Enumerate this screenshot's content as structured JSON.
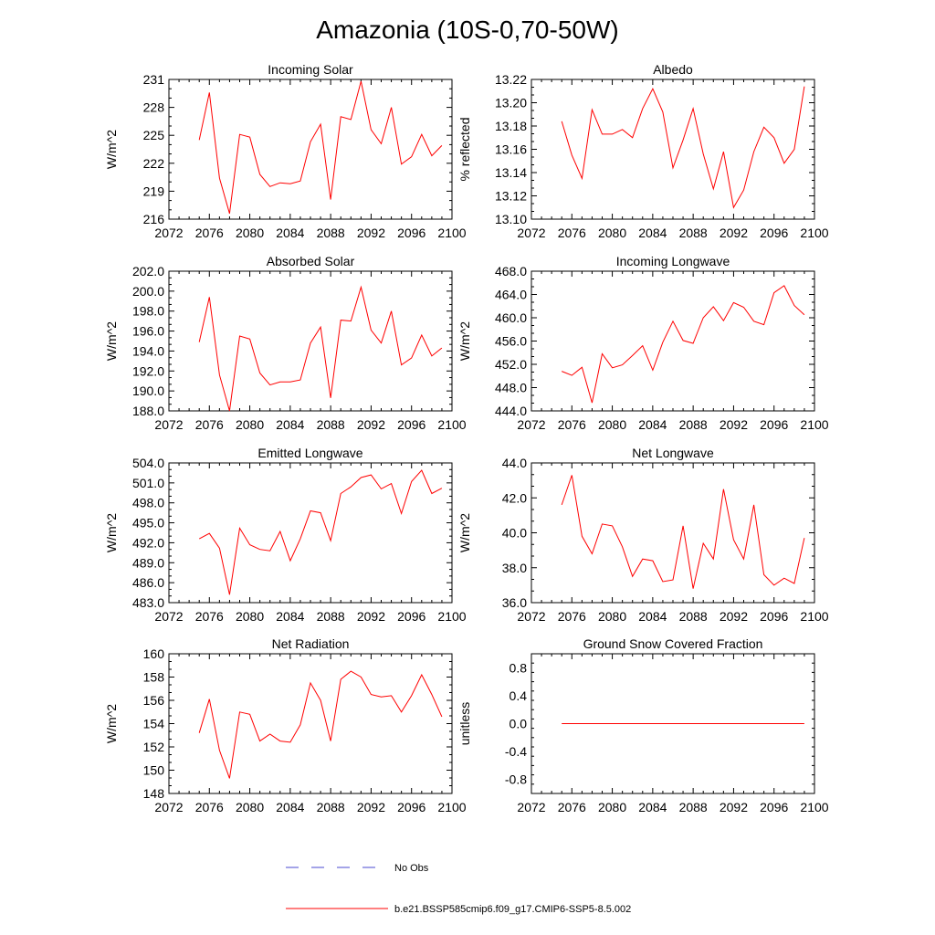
{
  "title": "Amazonia (10S-0,70-50W)",
  "line_color": "#ff0000",
  "obs_color": "#4a4ad0",
  "legend": {
    "obs_label": "No Obs",
    "model_label": "b.e21.BSSP585cmip6.f09_g17.CMIP6-SSP5-8.5.002"
  },
  "chart_data": [
    {
      "type": "line",
      "title": "Incoming Solar",
      "ylabel": "W/m^2",
      "xlim": [
        2072,
        2100
      ],
      "ylim": [
        216,
        231
      ],
      "xticks": [
        "2072",
        "2076",
        "2080",
        "2084",
        "2088",
        "2092",
        "2096",
        "2100"
      ],
      "yticks": [
        "216",
        "219",
        "222",
        "225",
        "228",
        "231"
      ],
      "x": [
        2075,
        2076,
        2077,
        2078,
        2079,
        2080,
        2081,
        2082,
        2083,
        2084,
        2085,
        2086,
        2087,
        2088,
        2089,
        2090,
        2091,
        2092,
        2093,
        2094,
        2095,
        2096,
        2097,
        2098,
        2099
      ],
      "values": [
        224.5,
        229.6,
        220.4,
        216.6,
        225.1,
        224.8,
        220.8,
        219.5,
        219.9,
        219.8,
        220.1,
        224.3,
        226.2,
        218.1,
        227.0,
        226.7,
        230.8,
        225.6,
        224.1,
        228.0,
        221.9,
        222.7,
        225.1,
        222.8,
        223.9
      ]
    },
    {
      "type": "line",
      "title": "Albedo",
      "ylabel": "% reflected",
      "xlim": [
        2072,
        2100
      ],
      "ylim": [
        13.1,
        13.22
      ],
      "xticks": [
        "2072",
        "2076",
        "2080",
        "2084",
        "2088",
        "2092",
        "2096",
        "2100"
      ],
      "yticks": [
        "13.10",
        "13.12",
        "13.14",
        "13.16",
        "13.18",
        "13.20",
        "13.22"
      ],
      "x": [
        2075,
        2076,
        2077,
        2078,
        2079,
        2080,
        2081,
        2082,
        2083,
        2084,
        2085,
        2086,
        2087,
        2088,
        2089,
        2090,
        2091,
        2092,
        2093,
        2094,
        2095,
        2096,
        2097,
        2098,
        2099
      ],
      "values": [
        13.184,
        13.155,
        13.135,
        13.194,
        13.173,
        13.173,
        13.177,
        13.17,
        13.195,
        13.212,
        13.192,
        13.144,
        13.168,
        13.195,
        13.156,
        13.126,
        13.158,
        13.11,
        13.125,
        13.158,
        13.179,
        13.17,
        13.148,
        13.16,
        13.214
      ]
    },
    {
      "type": "line",
      "title": "Absorbed Solar",
      "ylabel": "W/m^2",
      "xlim": [
        2072,
        2100
      ],
      "ylim": [
        188.0,
        202.0
      ],
      "xticks": [
        "2072",
        "2076",
        "2080",
        "2084",
        "2088",
        "2092",
        "2096",
        "2100"
      ],
      "yticks": [
        "188.0",
        "190.0",
        "192.0",
        "194.0",
        "196.0",
        "198.0",
        "200.0",
        "202.0"
      ],
      "x": [
        2075,
        2076,
        2077,
        2078,
        2079,
        2080,
        2081,
        2082,
        2083,
        2084,
        2085,
        2086,
        2087,
        2088,
        2089,
        2090,
        2091,
        2092,
        2093,
        2094,
        2095,
        2096,
        2097,
        2098,
        2099
      ],
      "values": [
        194.9,
        199.4,
        191.6,
        188.0,
        195.5,
        195.2,
        191.8,
        190.6,
        190.9,
        190.9,
        191.1,
        194.8,
        196.4,
        189.3,
        197.1,
        197.0,
        200.4,
        196.1,
        194.8,
        198.0,
        192.6,
        193.3,
        195.6,
        193.5,
        194.3
      ]
    },
    {
      "type": "line",
      "title": "Incoming Longwave",
      "ylabel": "W/m^2",
      "xlim": [
        2072,
        2100
      ],
      "ylim": [
        444.0,
        468.0
      ],
      "xticks": [
        "2072",
        "2076",
        "2080",
        "2084",
        "2088",
        "2092",
        "2096",
        "2100"
      ],
      "yticks": [
        "444.0",
        "448.0",
        "452.0",
        "456.0",
        "460.0",
        "464.0",
        "468.0"
      ],
      "x": [
        2075,
        2076,
        2077,
        2078,
        2079,
        2080,
        2081,
        2082,
        2083,
        2084,
        2085,
        2086,
        2087,
        2088,
        2089,
        2090,
        2091,
        2092,
        2093,
        2094,
        2095,
        2096,
        2097,
        2098,
        2099
      ],
      "values": [
        450.8,
        450.1,
        451.5,
        445.4,
        453.8,
        451.4,
        451.9,
        453.5,
        455.2,
        451.0,
        455.8,
        459.4,
        456.1,
        455.6,
        460.0,
        461.9,
        459.5,
        462.6,
        461.8,
        459.4,
        458.8,
        464.3,
        465.5,
        462.1,
        460.5
      ]
    },
    {
      "type": "line",
      "title": "Emitted Longwave",
      "ylabel": "W/m^2",
      "xlim": [
        2072,
        2100
      ],
      "ylim": [
        483.0,
        504.0
      ],
      "xticks": [
        "2072",
        "2076",
        "2080",
        "2084",
        "2088",
        "2092",
        "2096",
        "2100"
      ],
      "yticks": [
        "483.0",
        "486.0",
        "489.0",
        "492.0",
        "495.0",
        "498.0",
        "501.0",
        "504.0"
      ],
      "x": [
        2075,
        2076,
        2077,
        2078,
        2079,
        2080,
        2081,
        2082,
        2083,
        2084,
        2085,
        2086,
        2087,
        2088,
        2089,
        2090,
        2091,
        2092,
        2093,
        2094,
        2095,
        2096,
        2097,
        2098,
        2099
      ],
      "values": [
        492.6,
        493.4,
        491.2,
        484.2,
        494.2,
        491.7,
        491.0,
        490.8,
        493.7,
        489.3,
        492.6,
        496.8,
        496.5,
        492.3,
        499.4,
        500.4,
        501.8,
        502.2,
        500.1,
        500.9,
        496.4,
        501.2,
        502.9,
        499.4,
        500.2
      ]
    },
    {
      "type": "line",
      "title": "Net Longwave",
      "ylabel": "W/m^2",
      "xlim": [
        2072,
        2100
      ],
      "ylim": [
        36.0,
        44.0
      ],
      "xticks": [
        "2072",
        "2076",
        "2080",
        "2084",
        "2088",
        "2092",
        "2096",
        "2100"
      ],
      "yticks": [
        "36.0",
        "38.0",
        "40.0",
        "42.0",
        "44.0"
      ],
      "x": [
        2075,
        2076,
        2077,
        2078,
        2079,
        2080,
        2081,
        2082,
        2083,
        2084,
        2085,
        2086,
        2087,
        2088,
        2089,
        2090,
        2091,
        2092,
        2093,
        2094,
        2095,
        2096,
        2097,
        2098,
        2099
      ],
      "values": [
        41.6,
        43.3,
        39.8,
        38.8,
        40.5,
        40.4,
        39.2,
        37.5,
        38.5,
        38.4,
        37.2,
        37.3,
        40.4,
        36.8,
        39.4,
        38.5,
        42.5,
        39.6,
        38.5,
        41.6,
        37.6,
        37.0,
        37.4,
        37.1,
        39.7
      ]
    },
    {
      "type": "line",
      "title": "Net Radiation",
      "ylabel": "W/m^2",
      "xlim": [
        2072,
        2100
      ],
      "ylim": [
        148,
        160
      ],
      "xticks": [
        "2072",
        "2076",
        "2080",
        "2084",
        "2088",
        "2092",
        "2096",
        "2100"
      ],
      "yticks": [
        "148",
        "150",
        "152",
        "154",
        "156",
        "158",
        "160"
      ],
      "x": [
        2075,
        2076,
        2077,
        2078,
        2079,
        2080,
        2081,
        2082,
        2083,
        2084,
        2085,
        2086,
        2087,
        2088,
        2089,
        2090,
        2091,
        2092,
        2093,
        2094,
        2095,
        2096,
        2097,
        2098,
        2099
      ],
      "values": [
        153.2,
        156.1,
        151.7,
        149.3,
        155.0,
        154.8,
        152.5,
        153.1,
        152.5,
        152.4,
        153.9,
        157.5,
        156.0,
        152.5,
        157.8,
        158.5,
        158.0,
        156.5,
        156.3,
        156.4,
        155.0,
        156.4,
        158.2,
        156.5,
        154.6
      ]
    },
    {
      "type": "line",
      "title": "Ground Snow Covered Fraction",
      "ylabel": "unitless",
      "xlim": [
        2072,
        2100
      ],
      "ylim": [
        -1.0,
        1.0
      ],
      "xticks": [
        "2072",
        "2076",
        "2080",
        "2084",
        "2088",
        "2092",
        "2096",
        "2100"
      ],
      "yticks": [
        "-0.8",
        "-0.4",
        "0.0",
        "0.4",
        "0.8"
      ],
      "yticks_values": [
        -0.8,
        -0.4,
        0.0,
        0.4,
        0.8
      ],
      "x": [
        2075,
        2076,
        2077,
        2078,
        2079,
        2080,
        2081,
        2082,
        2083,
        2084,
        2085,
        2086,
        2087,
        2088,
        2089,
        2090,
        2091,
        2092,
        2093,
        2094,
        2095,
        2096,
        2097,
        2098,
        2099
      ],
      "values": [
        0,
        0,
        0,
        0,
        0,
        0,
        0,
        0,
        0,
        0,
        0,
        0,
        0,
        0,
        0,
        0,
        0,
        0,
        0,
        0,
        0,
        0,
        0,
        0,
        0
      ]
    }
  ]
}
